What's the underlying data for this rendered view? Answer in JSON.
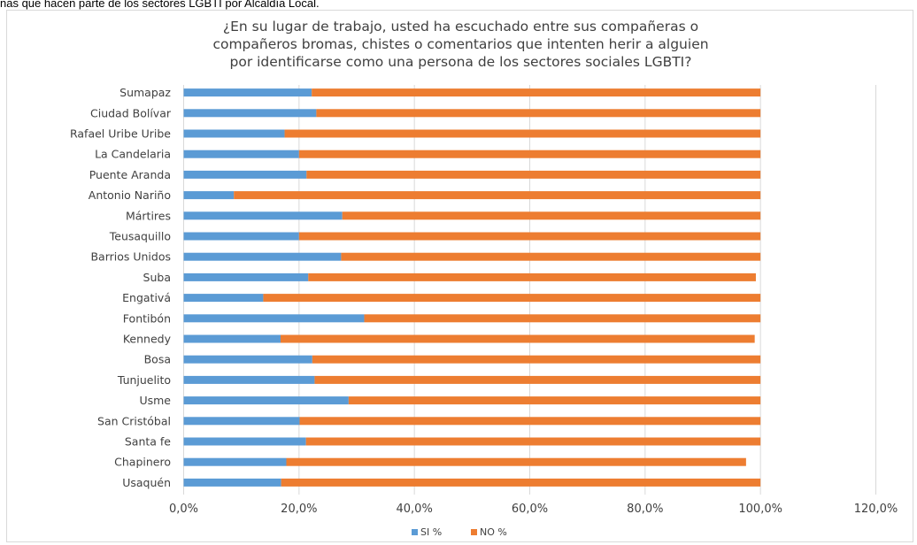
{
  "caption": "nas que hacen parte de los sectores LGBTI por Alcaldía Local.",
  "colors": {
    "si": "#5b9bd5",
    "no": "#ed7d31",
    "grid": "#d9d9d9",
    "text": "#404040"
  },
  "chart_data": {
    "type": "bar",
    "orientation": "horizontal",
    "stacked": true,
    "title_lines": [
      "¿En su lugar de trabajo, usted ha escuchado entre sus compañeras o",
      "compañeros bromas, chistes o comentarios que intenten herir a alguien",
      "por identificarse como una persona de los sectores sociales LGBTI?"
    ],
    "categories": [
      "Sumapaz",
      "Ciudad Bolívar",
      "Rafael Uribe Uribe",
      "La Candelaria",
      "Puente Aranda",
      "Antonio Nariño",
      "Mártires",
      "Teusaquillo",
      "Barrios Unidos",
      "Suba",
      "Engativá",
      "Fontibón",
      "Kennedy",
      "Bosa",
      "Tunjuelito",
      "Usme",
      "San Cristóbal",
      "Santa fe",
      "Chapinero",
      "Usaquén"
    ],
    "series": [
      {
        "name": "SI %",
        "color": "#5b9bd5",
        "values": [
          22.2,
          23.0,
          17.5,
          20.0,
          21.3,
          8.7,
          27.5,
          20.0,
          27.3,
          21.6,
          13.8,
          31.3,
          16.8,
          22.3,
          22.7,
          28.6,
          20.1,
          21.2,
          17.8,
          16.9
        ]
      },
      {
        "name": "NO %",
        "color": "#ed7d31",
        "values": [
          77.8,
          77.0,
          82.5,
          80.0,
          78.7,
          91.3,
          72.5,
          80.0,
          72.7,
          77.6,
          86.2,
          68.7,
          82.2,
          77.7,
          77.3,
          71.4,
          79.9,
          78.8,
          79.7,
          83.1
        ]
      }
    ],
    "xlim": [
      0,
      120
    ],
    "xticks": [
      "0,0%",
      "20,0%",
      "40,0%",
      "60,0%",
      "80,0%",
      "100,0%",
      "120,0%"
    ],
    "grid": true,
    "legend_position": "bottom"
  }
}
